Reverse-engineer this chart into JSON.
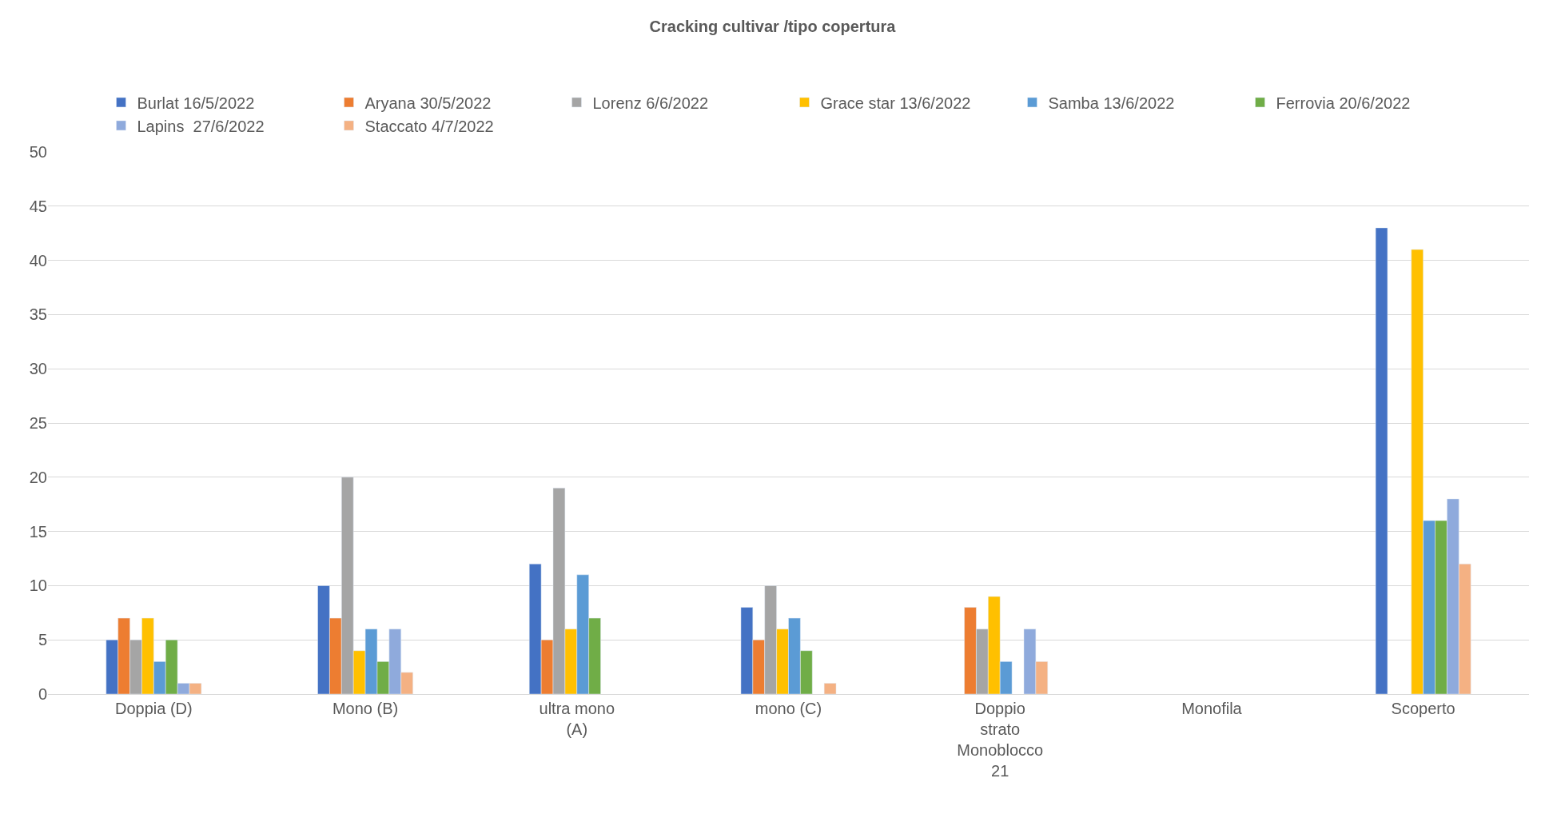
{
  "chart_data": {
    "type": "bar",
    "title": "Cracking cultivar /tipo copertura",
    "categories": [
      "Doppia (D)",
      "Mono (B)",
      "ultra mono (A)",
      "mono (C)",
      "Doppio strato Monoblocco 21",
      "Monofila",
      "Scoperto"
    ],
    "series": [
      {
        "name": "Burlat 16/5/2022",
        "color": "#4472c4",
        "values": [
          5,
          10,
          12,
          8,
          null,
          null,
          43
        ]
      },
      {
        "name": "Aryana 30/5/2022",
        "color": "#ed7d31",
        "values": [
          7,
          7,
          5,
          5,
          8,
          null,
          null
        ]
      },
      {
        "name": "Lorenz 6/6/2022",
        "color": "#a5a5a5",
        "values": [
          5,
          20,
          19,
          10,
          6,
          null,
          null
        ]
      },
      {
        "name": "Grace star 13/6/2022",
        "color": "#ffc000",
        "values": [
          7,
          4,
          6,
          6,
          9,
          null,
          41
        ]
      },
      {
        "name": "Samba 13/6/2022",
        "color": "#5b9bd5",
        "values": [
          3,
          6,
          11,
          7,
          3,
          null,
          16
        ]
      },
      {
        "name": "Ferrovia 20/6/2022",
        "color": "#70ad47",
        "values": [
          5,
          3,
          7,
          4,
          null,
          null,
          16
        ]
      },
      {
        "name": "Lapins  27/6/2022",
        "color": "#8faadc",
        "values": [
          1,
          6,
          null,
          null,
          6,
          null,
          18
        ]
      },
      {
        "name": "Staccato 4/7/2022",
        "color": "#f4b183",
        "values": [
          1,
          2,
          null,
          1,
          3,
          null,
          12
        ]
      }
    ],
    "ylim": [
      0,
      50
    ],
    "yticks": [
      0,
      5,
      10,
      15,
      20,
      25,
      30,
      35,
      40,
      45,
      50
    ],
    "grid": "y",
    "legend": "top"
  }
}
